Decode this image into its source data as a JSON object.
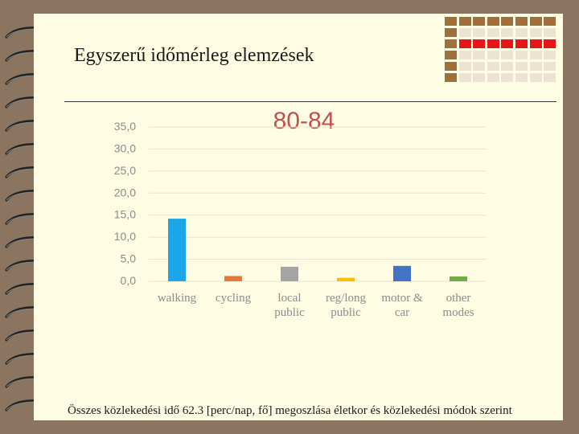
{
  "slide": {
    "title": "Egyszerű időmérleg elemzések",
    "caption": "Összes közlekedési idő 62.3 [perc/nap, fő] megoszlása életkor és közlekedési módok szerint"
  },
  "chart_data": {
    "type": "bar",
    "title": "80-84",
    "categories": [
      [
        "walking"
      ],
      [
        "cycling"
      ],
      [
        "local",
        "public"
      ],
      [
        "reg/long",
        "public"
      ],
      [
        "motor &",
        "car"
      ],
      [
        "other",
        "modes"
      ]
    ],
    "values": [
      14.2,
      1.2,
      3.3,
      0.8,
      3.5,
      1.1
    ],
    "colors": [
      "#1aa6e8",
      "#e07b39",
      "#a5a5a5",
      "#f5c000",
      "#4472c4",
      "#70ad47"
    ],
    "yticks": [
      "0,0",
      "5,0",
      "10,0",
      "15,0",
      "20,0",
      "25,0",
      "30,0",
      "35,0"
    ],
    "ylim": [
      0,
      35
    ],
    "grid": true
  }
}
